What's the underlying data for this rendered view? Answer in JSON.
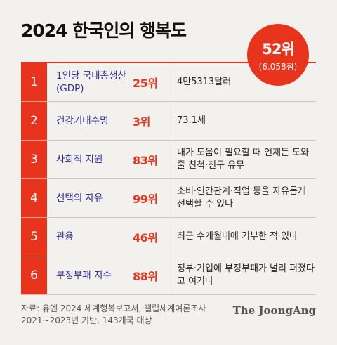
{
  "title": "2024 한국인의 행복도",
  "overall": {
    "rank": "52위",
    "score": "(6.058점)"
  },
  "rows": [
    {
      "num": "1",
      "label": "1인당 국내총생산 (GDP)",
      "rank": "25위",
      "value": "4만5313달러"
    },
    {
      "num": "2",
      "label": "건강기대수명",
      "rank": "3위",
      "value": "73.1세"
    },
    {
      "num": "3",
      "label": "사회적 지원",
      "rank": "83위",
      "value": "내가 도움이 필요할 때 언제든 도와줄 친척·친구 유무"
    },
    {
      "num": "4",
      "label": "선택의 자유",
      "rank": "99위",
      "value": "소비·인간관계·직업 등을 자유롭게 선택할 수 있나"
    },
    {
      "num": "5",
      "label": "관용",
      "rank": "46위",
      "value": "최근 수개월내에 기부한 적 있나"
    },
    {
      "num": "6",
      "label": "부정부패 지수",
      "rank": "88위",
      "value": "정부·기업에 부정부패가 널리 퍼졌다고 여기나"
    }
  ],
  "footer": {
    "line1": "자료: 유엔 2024 세계행복보고서, 갤럽세계여론조사",
    "line2": "2021~2023년 기반, 143개국 대상"
  },
  "brand": "The JoongAng"
}
